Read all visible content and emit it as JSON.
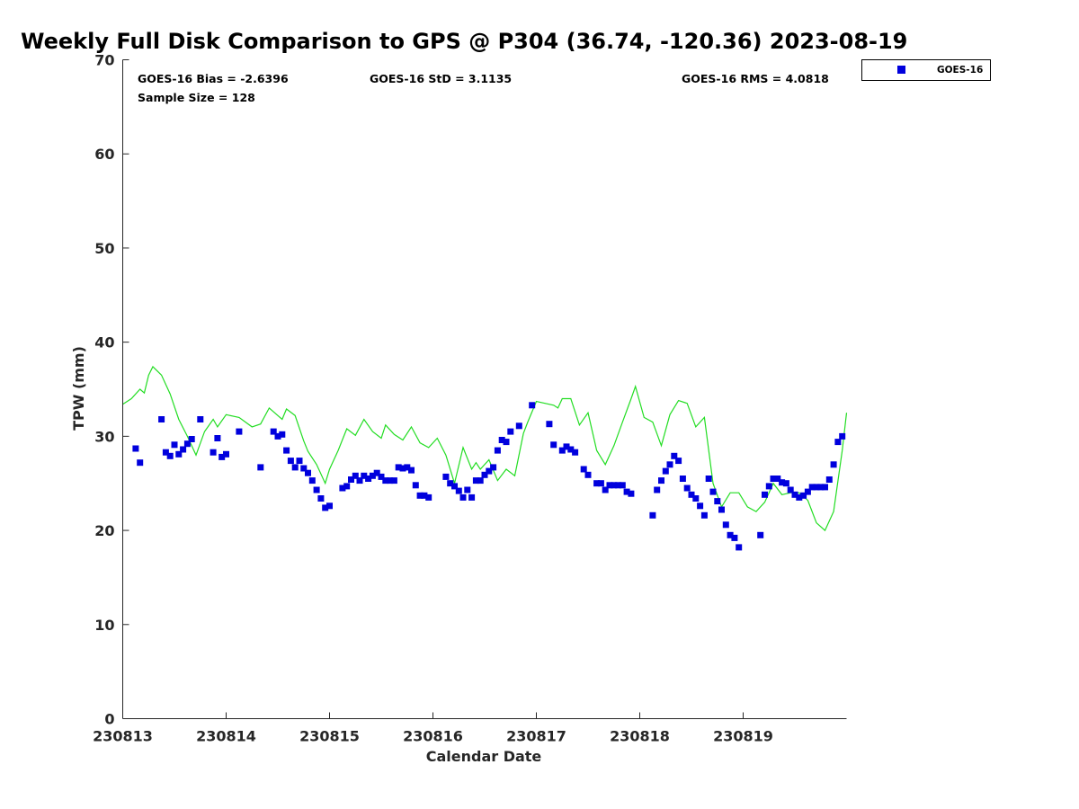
{
  "chart_data": {
    "type": "scatter",
    "title": "Weekly Full Disk Comparison to GPS @ P304 (36.74, -120.36) 2023-08-19",
    "xlabel": "Calendar Date",
    "ylabel": "TPW (mm)",
    "xlim": [
      "230813",
      "230820"
    ],
    "ylim": [
      0,
      70
    ],
    "grid": false,
    "legend_position": "top-right",
    "x_ticks": [
      "230813",
      "230814",
      "230815",
      "230816",
      "230817",
      "230818",
      "230819"
    ],
    "y_ticks": [
      "0",
      "10",
      "20",
      "30",
      "40",
      "50",
      "60",
      "70"
    ],
    "stats": {
      "bias": "GOES-16 Bias = -2.6396",
      "std": "GOES-16 StD = 3.1135",
      "rms": "GOES-16 RMS = 4.0818",
      "sample_size": "Sample Size = 128"
    },
    "legend": {
      "label": "GOES-16"
    },
    "colors": {
      "goes": "#0000dd",
      "gps": "#22dd22"
    },
    "series": [
      {
        "name": "GOES-16",
        "style": "scatter-square",
        "x": [
          "2023-08-13 03:00",
          "2023-08-13 04:00",
          "2023-08-13 09:00",
          "2023-08-13 10:00",
          "2023-08-13 11:00",
          "2023-08-13 12:00",
          "2023-08-13 13:00",
          "2023-08-13 14:00",
          "2023-08-13 15:00",
          "2023-08-13 16:00",
          "2023-08-13 18:00",
          "2023-08-13 21:00",
          "2023-08-13 22:00",
          "2023-08-13 23:00",
          "2023-08-14 00:00",
          "2023-08-14 03:00",
          "2023-08-14 08:00",
          "2023-08-14 11:00",
          "2023-08-14 12:00",
          "2023-08-14 13:00",
          "2023-08-14 14:00",
          "2023-08-14 15:00",
          "2023-08-14 16:00",
          "2023-08-14 17:00",
          "2023-08-14 18:00",
          "2023-08-14 19:00",
          "2023-08-14 20:00",
          "2023-08-14 21:00",
          "2023-08-14 22:00",
          "2023-08-14 23:00",
          "2023-08-15 00:00",
          "2023-08-15 03:00",
          "2023-08-15 04:00",
          "2023-08-15 05:00",
          "2023-08-15 06:00",
          "2023-08-15 07:00",
          "2023-08-15 08:00",
          "2023-08-15 09:00",
          "2023-08-15 10:00",
          "2023-08-15 11:00",
          "2023-08-15 12:00",
          "2023-08-15 13:00",
          "2023-08-15 14:00",
          "2023-08-15 15:00",
          "2023-08-15 16:00",
          "2023-08-15 17:00",
          "2023-08-15 18:00",
          "2023-08-15 19:00",
          "2023-08-15 20:00",
          "2023-08-15 21:00",
          "2023-08-15 22:00",
          "2023-08-15 23:00",
          "2023-08-16 03:00",
          "2023-08-16 04:00",
          "2023-08-16 05:00",
          "2023-08-16 06:00",
          "2023-08-16 07:00",
          "2023-08-16 08:00",
          "2023-08-16 09:00",
          "2023-08-16 10:00",
          "2023-08-16 11:00",
          "2023-08-16 12:00",
          "2023-08-16 13:00",
          "2023-08-16 14:00",
          "2023-08-16 15:00",
          "2023-08-16 16:00",
          "2023-08-16 17:00",
          "2023-08-16 18:00",
          "2023-08-16 20:00",
          "2023-08-16 23:00",
          "2023-08-17 03:00",
          "2023-08-17 04:00",
          "2023-08-17 06:00",
          "2023-08-17 07:00",
          "2023-08-17 08:00",
          "2023-08-17 09:00",
          "2023-08-17 11:00",
          "2023-08-17 12:00",
          "2023-08-17 14:00",
          "2023-08-17 15:00",
          "2023-08-17 16:00",
          "2023-08-17 17:00",
          "2023-08-17 18:00",
          "2023-08-17 19:00",
          "2023-08-17 20:00",
          "2023-08-17 21:00",
          "2023-08-17 22:00",
          "2023-08-18 03:00",
          "2023-08-18 04:00",
          "2023-08-18 05:00",
          "2023-08-18 06:00",
          "2023-08-18 07:00",
          "2023-08-18 08:00",
          "2023-08-18 09:00",
          "2023-08-18 10:00",
          "2023-08-18 11:00",
          "2023-08-18 12:00",
          "2023-08-18 13:00",
          "2023-08-18 14:00",
          "2023-08-18 15:00",
          "2023-08-18 16:00",
          "2023-08-18 17:00",
          "2023-08-18 18:00",
          "2023-08-18 19:00",
          "2023-08-18 20:00",
          "2023-08-18 21:00",
          "2023-08-18 22:00",
          "2023-08-18 23:00",
          "2023-08-19 04:00",
          "2023-08-19 05:00",
          "2023-08-19 06:00",
          "2023-08-19 07:00",
          "2023-08-19 08:00",
          "2023-08-19 09:00",
          "2023-08-19 10:00",
          "2023-08-19 11:00",
          "2023-08-19 12:00",
          "2023-08-19 13:00",
          "2023-08-19 14:00",
          "2023-08-19 15:00",
          "2023-08-19 16:00",
          "2023-08-19 17:00",
          "2023-08-19 18:00",
          "2023-08-19 19:00",
          "2023-08-19 20:00",
          "2023-08-19 21:00",
          "2023-08-19 22:00",
          "2023-08-19 23:00"
        ],
        "y": [
          28.7,
          27.2,
          31.8,
          28.3,
          27.9,
          29.1,
          28.1,
          28.6,
          29.2,
          29.7,
          31.8,
          28.3,
          29.8,
          27.8,
          28.1,
          30.5,
          26.7,
          30.5,
          30.0,
          30.2,
          28.5,
          27.4,
          26.7,
          27.4,
          26.6,
          26.1,
          25.3,
          24.3,
          23.4,
          22.4,
          22.6,
          24.5,
          24.7,
          25.4,
          25.8,
          25.3,
          25.8,
          25.5,
          25.8,
          26.1,
          25.7,
          25.3,
          25.3,
          25.3,
          26.7,
          26.6,
          26.7,
          26.4,
          24.8,
          23.7,
          23.7,
          23.5,
          25.7,
          25.0,
          24.7,
          24.2,
          23.5,
          24.3,
          23.5,
          25.3,
          25.3,
          25.9,
          26.3,
          26.7,
          28.5,
          29.6,
          29.4,
          30.5,
          31.1,
          33.3,
          31.3,
          29.1,
          28.5,
          28.9,
          28.6,
          28.3,
          26.5,
          25.9,
          25.0,
          25.0,
          24.3,
          24.8,
          24.8,
          24.8,
          24.8,
          24.1,
          23.9,
          21.6,
          24.3,
          25.3,
          26.3,
          27.0,
          27.9,
          27.4,
          25.5,
          24.5,
          23.8,
          23.4,
          22.6,
          21.6,
          25.5,
          24.1,
          23.1,
          22.2,
          20.6,
          19.5,
          19.2,
          18.2,
          19.5,
          23.8,
          24.7,
          25.5,
          25.5,
          25.1,
          25.0,
          24.3,
          23.8,
          23.5,
          23.7,
          24.1,
          24.6,
          24.6,
          24.6,
          24.6,
          25.4,
          27.0,
          29.4,
          30.0
        ]
      },
      {
        "name": "",
        "style": "line",
        "x": [
          "2023-08-13 00:00",
          "2023-08-13 02:00",
          "2023-08-13 04:00",
          "2023-08-13 05:00",
          "2023-08-13 06:00",
          "2023-08-13 07:00",
          "2023-08-13 09:00",
          "2023-08-13 11:00",
          "2023-08-13 13:00",
          "2023-08-13 15:00",
          "2023-08-13 17:00",
          "2023-08-13 19:00",
          "2023-08-13 21:00",
          "2023-08-13 22:00",
          "2023-08-14 00:00",
          "2023-08-14 03:00",
          "2023-08-14 06:00",
          "2023-08-14 08:00",
          "2023-08-14 10:00",
          "2023-08-14 12:00",
          "2023-08-14 13:00",
          "2023-08-14 14:00",
          "2023-08-14 16:00",
          "2023-08-14 18:00",
          "2023-08-14 19:00",
          "2023-08-14 21:00",
          "2023-08-14 23:00",
          "2023-08-15 00:00",
          "2023-08-15 02:00",
          "2023-08-15 04:00",
          "2023-08-15 06:00",
          "2023-08-15 08:00",
          "2023-08-15 10:00",
          "2023-08-15 12:00",
          "2023-08-15 13:00",
          "2023-08-15 15:00",
          "2023-08-15 17:00",
          "2023-08-15 19:00",
          "2023-08-15 21:00",
          "2023-08-15 23:00",
          "2023-08-16 01:00",
          "2023-08-16 03:00",
          "2023-08-16 05:00",
          "2023-08-16 07:00",
          "2023-08-16 09:00",
          "2023-08-16 10:00",
          "2023-08-16 11:00",
          "2023-08-16 13:00",
          "2023-08-16 15:00",
          "2023-08-16 17:00",
          "2023-08-16 19:00",
          "2023-08-16 21:00",
          "2023-08-16 22:00",
          "2023-08-17 00:00",
          "2023-08-17 02:00",
          "2023-08-17 04:00",
          "2023-08-17 05:00",
          "2023-08-17 06:00",
          "2023-08-17 08:00",
          "2023-08-17 10:00",
          "2023-08-17 12:00",
          "2023-08-17 14:00",
          "2023-08-17 16:00",
          "2023-08-17 18:00",
          "2023-08-17 20:00",
          "2023-08-17 22:00",
          "2023-08-17 23:00",
          "2023-08-18 01:00",
          "2023-08-18 03:00",
          "2023-08-18 05:00",
          "2023-08-18 07:00",
          "2023-08-18 09:00",
          "2023-08-18 11:00",
          "2023-08-18 13:00",
          "2023-08-18 15:00",
          "2023-08-18 17:00",
          "2023-08-18 19:00",
          "2023-08-18 21:00",
          "2023-08-18 23:00",
          "2023-08-19 01:00",
          "2023-08-19 03:00",
          "2023-08-19 05:00",
          "2023-08-19 07:00",
          "2023-08-19 09:00",
          "2023-08-19 11:00",
          "2023-08-19 13:00",
          "2023-08-19 15:00",
          "2023-08-19 17:00",
          "2023-08-19 19:00",
          "2023-08-19 21:00",
          "2023-08-19 23:00",
          "2023-08-20 00:00"
        ],
        "y": [
          33.4,
          34.0,
          35.0,
          34.6,
          36.5,
          37.4,
          36.5,
          34.5,
          31.8,
          30.0,
          28.0,
          30.5,
          31.8,
          31.0,
          32.3,
          32.0,
          31.0,
          31.3,
          33.0,
          32.2,
          31.8,
          32.9,
          32.2,
          29.5,
          28.4,
          27.0,
          25.0,
          26.5,
          28.5,
          30.8,
          30.1,
          31.8,
          30.5,
          29.8,
          31.2,
          30.2,
          29.6,
          31.0,
          29.3,
          28.8,
          29.8,
          28.0,
          25.0,
          28.8,
          26.5,
          27.2,
          26.5,
          27.5,
          25.3,
          26.5,
          25.8,
          30.3,
          31.5,
          33.7,
          33.5,
          33.3,
          33.0,
          34.0,
          34.0,
          31.2,
          32.5,
          28.5,
          27.0,
          29.0,
          31.5,
          34.0,
          35.3,
          32.0,
          31.5,
          29.0,
          32.3,
          33.8,
          33.5,
          31.0,
          32.0,
          25.0,
          22.5,
          24.0,
          24.0,
          22.5,
          22.0,
          23.0,
          25.0,
          23.8,
          24.0,
          24.0,
          23.2,
          20.8,
          20.0,
          22.0,
          28.5,
          32.5
        ]
      }
    ]
  }
}
